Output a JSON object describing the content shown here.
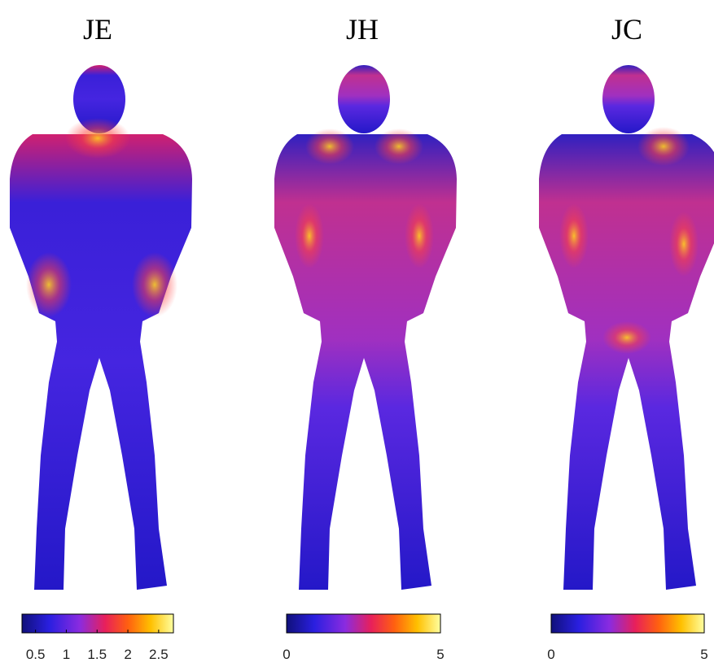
{
  "panels": [
    {
      "title": "JE",
      "colorbar": {
        "lim": [
          0.28,
          2.74
        ],
        "ticks": [
          0.5,
          1,
          1.5,
          2,
          2.5
        ]
      }
    },
    {
      "title": "JH",
      "colorbar": {
        "lim": [
          0,
          5
        ],
        "ticks": [
          0,
          5
        ]
      }
    },
    {
      "title": "JC",
      "colorbar": {
        "lim": [
          0,
          5
        ],
        "ticks": [
          0,
          5
        ]
      }
    }
  ]
}
